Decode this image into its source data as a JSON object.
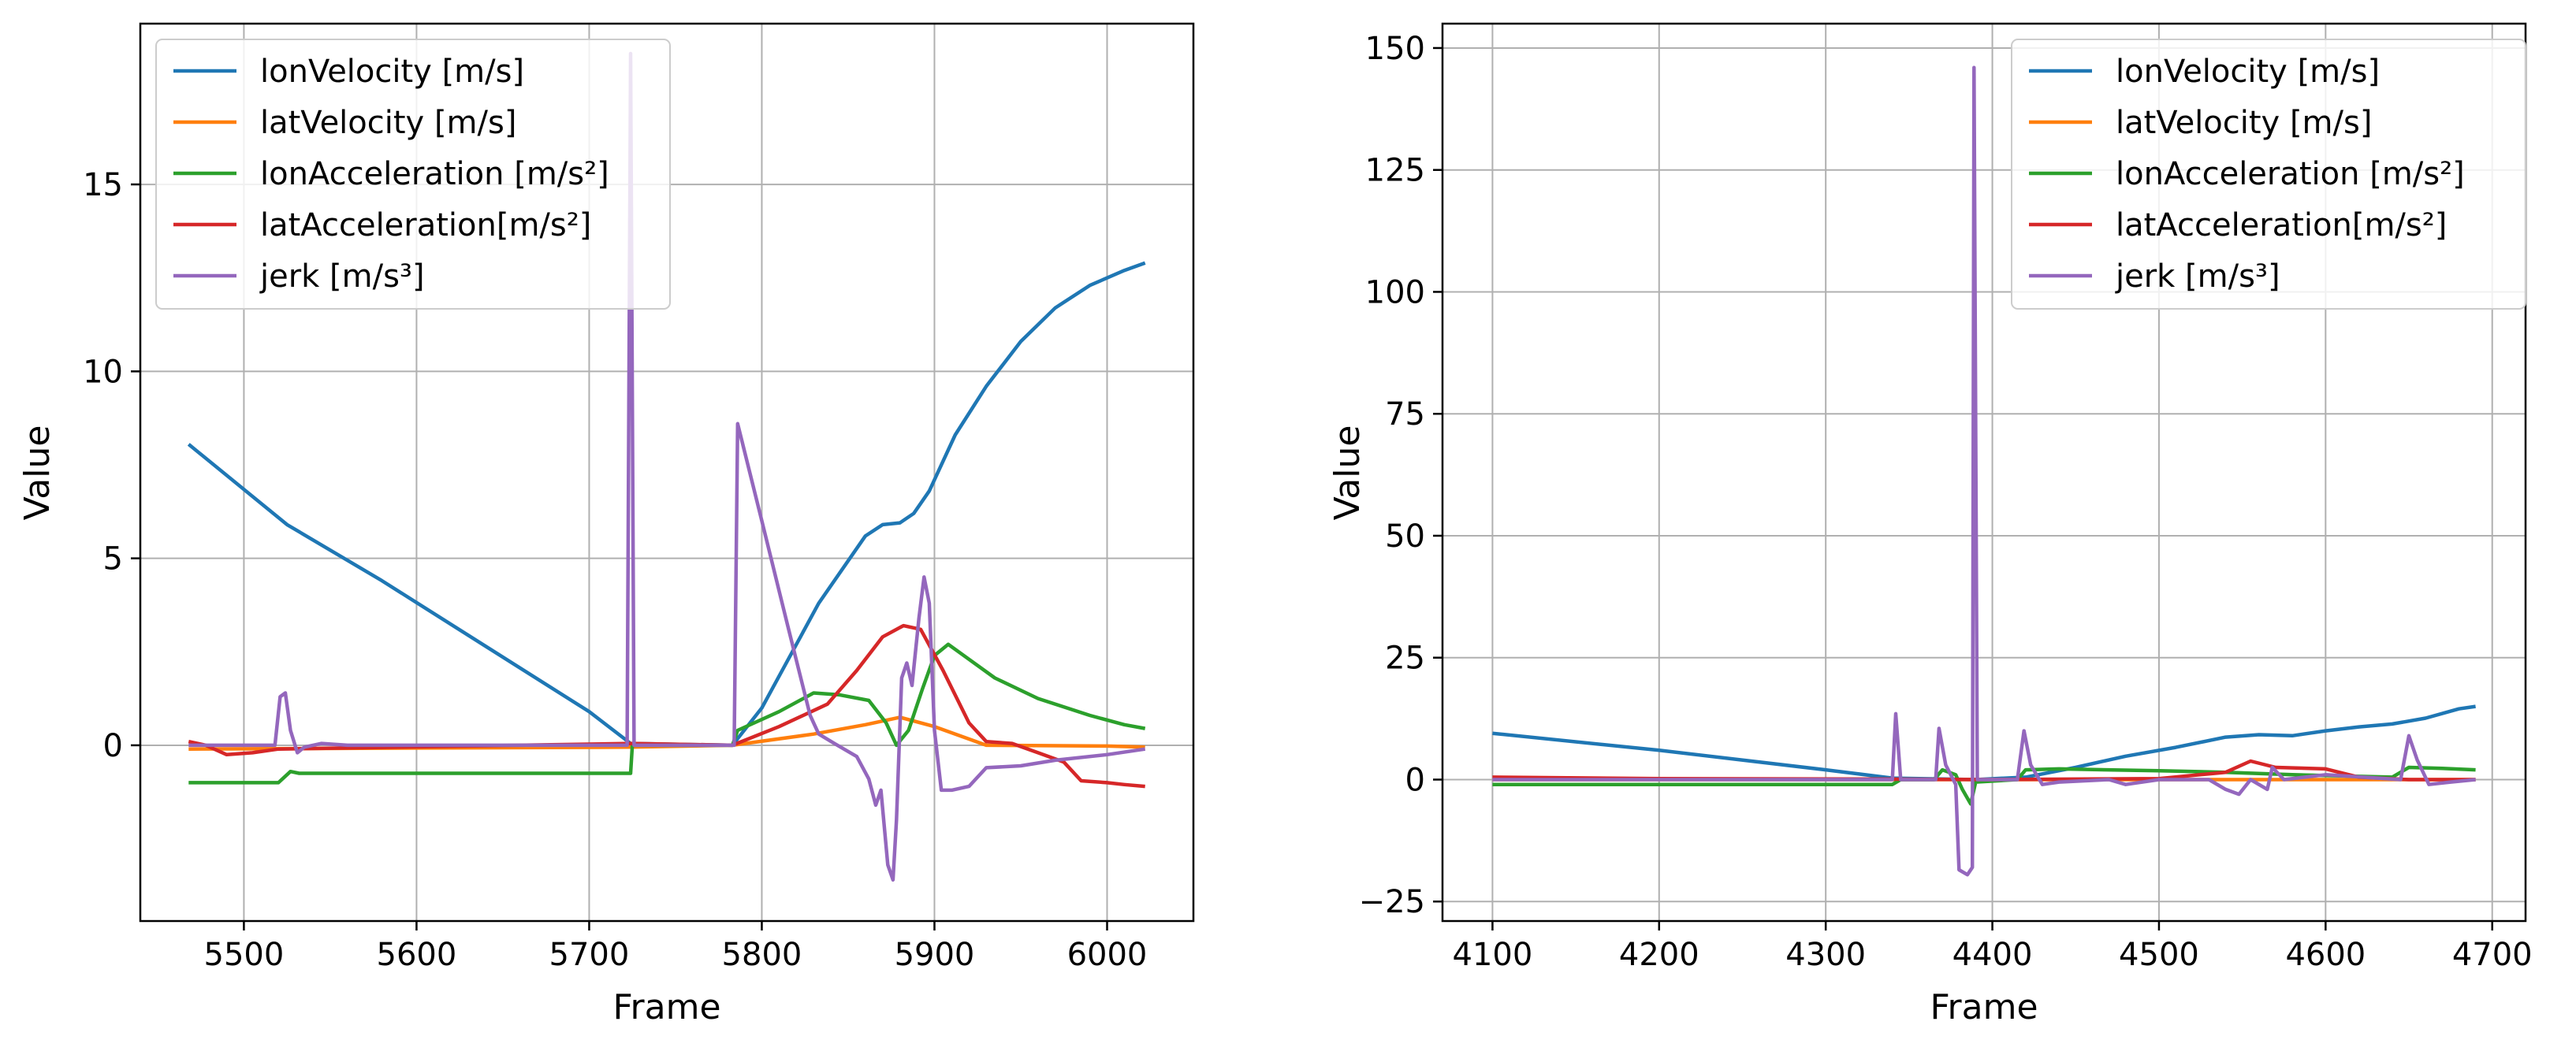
{
  "chart_data": [
    {
      "type": "line",
      "xlabel": "Frame",
      "ylabel": "Value",
      "xlim": [
        5440,
        6050
      ],
      "ylim": [
        -4.7,
        19.3
      ],
      "xticks": [
        5500,
        5600,
        5700,
        5800,
        5900,
        6000
      ],
      "yticks": [
        0,
        5,
        10,
        15
      ],
      "grid": true,
      "legend_position": "top-left",
      "series": [
        {
          "name": "lonVelocity [m/s]",
          "color": "#1f77b4",
          "points": [
            [
              5468,
              8.05
            ],
            [
              5525,
              5.9
            ],
            [
              5580,
              4.4
            ],
            [
              5640,
              2.65
            ],
            [
              5700,
              0.9
            ],
            [
              5724,
              0.05
            ],
            [
              5783,
              0.0
            ],
            [
              5800,
              1.0
            ],
            [
              5833,
              3.8
            ],
            [
              5860,
              5.6
            ],
            [
              5870,
              5.9
            ],
            [
              5880,
              5.95
            ],
            [
              5888,
              6.2
            ],
            [
              5897,
              6.8
            ],
            [
              5912,
              8.3
            ],
            [
              5930,
              9.6
            ],
            [
              5950,
              10.8
            ],
            [
              5970,
              11.7
            ],
            [
              5990,
              12.3
            ],
            [
              6010,
              12.7
            ],
            [
              6022,
              12.9
            ]
          ]
        },
        {
          "name": "latVelocity [m/s]",
          "color": "#ff7f0e",
          "points": [
            [
              5468,
              -0.1
            ],
            [
              5724,
              -0.05
            ],
            [
              5783,
              0.0
            ],
            [
              5830,
              0.3
            ],
            [
              5860,
              0.55
            ],
            [
              5880,
              0.75
            ],
            [
              5900,
              0.5
            ],
            [
              5930,
              0.0
            ],
            [
              6000,
              -0.02
            ],
            [
              6022,
              -0.05
            ]
          ]
        },
        {
          "name": "lonAcceleration [m/s²]",
          "color": "#2ca02c",
          "points": [
            [
              5468,
              -1.0
            ],
            [
              5520,
              -1.0
            ],
            [
              5527,
              -0.7
            ],
            [
              5532,
              -0.75
            ],
            [
              5724,
              -0.75
            ],
            [
              5725,
              0.0
            ],
            [
              5783,
              0.0
            ],
            [
              5786,
              0.4
            ],
            [
              5810,
              0.9
            ],
            [
              5830,
              1.4
            ],
            [
              5845,
              1.35
            ],
            [
              5862,
              1.2
            ],
            [
              5872,
              0.6
            ],
            [
              5878,
              0.0
            ],
            [
              5885,
              0.4
            ],
            [
              5893,
              1.5
            ],
            [
              5900,
              2.4
            ],
            [
              5908,
              2.7
            ],
            [
              5920,
              2.3
            ],
            [
              5935,
              1.8
            ],
            [
              5960,
              1.25
            ],
            [
              5990,
              0.8
            ],
            [
              6010,
              0.55
            ],
            [
              6022,
              0.45
            ]
          ]
        },
        {
          "name": "latAcceleration[m/s²]",
          "color": "#d62728",
          "points": [
            [
              5468,
              0.1
            ],
            [
              5478,
              0.0
            ],
            [
              5490,
              -0.25
            ],
            [
              5505,
              -0.2
            ],
            [
              5520,
              -0.1
            ],
            [
              5724,
              0.05
            ],
            [
              5783,
              0.0
            ],
            [
              5810,
              0.5
            ],
            [
              5838,
              1.1
            ],
            [
              5855,
              2.0
            ],
            [
              5870,
              2.9
            ],
            [
              5882,
              3.2
            ],
            [
              5892,
              3.1
            ],
            [
              5905,
              2.0
            ],
            [
              5920,
              0.6
            ],
            [
              5930,
              0.1
            ],
            [
              5945,
              0.05
            ],
            [
              5960,
              -0.2
            ],
            [
              5975,
              -0.45
            ],
            [
              5985,
              -0.95
            ],
            [
              6000,
              -1.0
            ],
            [
              6010,
              -1.05
            ],
            [
              6022,
              -1.1
            ]
          ]
        },
        {
          "name": "jerk [m/s³]",
          "color": "#9467bd",
          "points": [
            [
              5468,
              0.0
            ],
            [
              5518,
              0.0
            ],
            [
              5521,
              1.3
            ],
            [
              5524,
              1.4
            ],
            [
              5527,
              0.4
            ],
            [
              5531,
              -0.2
            ],
            [
              5535,
              -0.05
            ],
            [
              5545,
              0.05
            ],
            [
              5560,
              0.0
            ],
            [
              5722,
              0.0
            ],
            [
              5724,
              18.5
            ],
            [
              5726,
              0.0
            ],
            [
              5784,
              0.0
            ],
            [
              5786,
              8.6
            ],
            [
              5800,
              6.0
            ],
            [
              5815,
              3.2
            ],
            [
              5828,
              0.8
            ],
            [
              5833,
              0.3
            ],
            [
              5842,
              0.05
            ],
            [
              5855,
              -0.3
            ],
            [
              5862,
              -0.9
            ],
            [
              5866,
              -1.6
            ],
            [
              5869,
              -1.2
            ],
            [
              5873,
              -3.2
            ],
            [
              5876,
              -3.6
            ],
            [
              5878,
              -2.0
            ],
            [
              5881,
              1.8
            ],
            [
              5884,
              2.2
            ],
            [
              5887,
              1.6
            ],
            [
              5891,
              3.4
            ],
            [
              5894,
              4.5
            ],
            [
              5897,
              3.8
            ],
            [
              5900,
              0.4
            ],
            [
              5904,
              -1.2
            ],
            [
              5910,
              -1.2
            ],
            [
              5920,
              -1.1
            ],
            [
              5930,
              -0.6
            ],
            [
              5950,
              -0.55
            ],
            [
              5970,
              -0.4
            ],
            [
              6000,
              -0.25
            ],
            [
              6022,
              -0.1
            ]
          ]
        }
      ]
    },
    {
      "type": "line",
      "xlabel": "Frame",
      "ylabel": "Value",
      "xlim": [
        4070,
        4720
      ],
      "ylim": [
        -29,
        155
      ],
      "xticks": [
        4100,
        4200,
        4300,
        4400,
        4500,
        4600,
        4700
      ],
      "yticks": [
        -25,
        0,
        25,
        50,
        75,
        100,
        125,
        150
      ],
      "ytick_labels": [
        "−25",
        "0",
        "25",
        "50",
        "75",
        "100",
        "125",
        "150"
      ],
      "grid": true,
      "legend_position": "top-right",
      "series": [
        {
          "name": "lonVelocity [m/s]",
          "color": "#1f77b4",
          "points": [
            [
              4100,
              9.5
            ],
            [
              4200,
              6.0
            ],
            [
              4300,
              2.0
            ],
            [
              4340,
              0.3
            ],
            [
              4390,
              0.0
            ],
            [
              4420,
              0.5
            ],
            [
              4450,
              2.5
            ],
            [
              4480,
              4.8
            ],
            [
              4510,
              6.6
            ],
            [
              4540,
              8.7
            ],
            [
              4560,
              9.2
            ],
            [
              4580,
              9.0
            ],
            [
              4600,
              10.0
            ],
            [
              4620,
              10.8
            ],
            [
              4640,
              11.4
            ],
            [
              4660,
              12.6
            ],
            [
              4680,
              14.5
            ],
            [
              4690,
              15.0
            ]
          ]
        },
        {
          "name": "latVelocity [m/s]",
          "color": "#ff7f0e",
          "points": [
            [
              4100,
              0.0
            ],
            [
              4690,
              0.0
            ]
          ]
        },
        {
          "name": "lonAcceleration [m/s²]",
          "color": "#2ca02c",
          "points": [
            [
              4100,
              -1.0
            ],
            [
              4340,
              -1.0
            ],
            [
              4345,
              0.0
            ],
            [
              4365,
              0.0
            ],
            [
              4370,
              2.0
            ],
            [
              4378,
              1.0
            ],
            [
              4382,
              -2.0
            ],
            [
              4387,
              -5.0
            ],
            [
              4390,
              -0.5
            ],
            [
              4415,
              0.0
            ],
            [
              4420,
              2.0
            ],
            [
              4440,
              2.2
            ],
            [
              4500,
              1.8
            ],
            [
              4540,
              1.5
            ],
            [
              4580,
              1.0
            ],
            [
              4640,
              0.5
            ],
            [
              4650,
              2.5
            ],
            [
              4670,
              2.3
            ],
            [
              4690,
              2.0
            ]
          ]
        },
        {
          "name": "latAcceleration[m/s²]",
          "color": "#d62728",
          "points": [
            [
              4100,
              0.5
            ],
            [
              4200,
              0.2
            ],
            [
              4340,
              0.1
            ],
            [
              4400,
              0.0
            ],
            [
              4500,
              0.2
            ],
            [
              4540,
              1.5
            ],
            [
              4555,
              3.8
            ],
            [
              4570,
              2.5
            ],
            [
              4600,
              2.2
            ],
            [
              4620,
              0.5
            ],
            [
              4650,
              0.0
            ],
            [
              4690,
              0.0
            ]
          ]
        },
        {
          "name": "jerk [m/s³]",
          "color": "#9467bd",
          "points": [
            [
              4100,
              0.0
            ],
            [
              4340,
              0.0
            ],
            [
              4342,
              13.5
            ],
            [
              4345,
              0.0
            ],
            [
              4366,
              0.0
            ],
            [
              4368,
              10.5
            ],
            [
              4372,
              3.0
            ],
            [
              4378,
              -1.0
            ],
            [
              4380,
              -18.5
            ],
            [
              4385,
              -19.5
            ],
            [
              4388,
              -18.0
            ],
            [
              4389,
              146.0
            ],
            [
              4391,
              0.0
            ],
            [
              4415,
              0.0
            ],
            [
              4419,
              10.0
            ],
            [
              4423,
              3.0
            ],
            [
              4430,
              -1.0
            ],
            [
              4440,
              -0.5
            ],
            [
              4470,
              0.0
            ],
            [
              4480,
              -1.0
            ],
            [
              4500,
              0.0
            ],
            [
              4530,
              0.0
            ],
            [
              4540,
              -2.0
            ],
            [
              4548,
              -3.0
            ],
            [
              4555,
              0.0
            ],
            [
              4565,
              -2.0
            ],
            [
              4568,
              2.5
            ],
            [
              4575,
              0.0
            ],
            [
              4600,
              1.0
            ],
            [
              4645,
              0.0
            ],
            [
              4650,
              9.0
            ],
            [
              4655,
              4.0
            ],
            [
              4662,
              -1.0
            ],
            [
              4675,
              -0.5
            ],
            [
              4690,
              0.0
            ]
          ]
        }
      ]
    }
  ]
}
